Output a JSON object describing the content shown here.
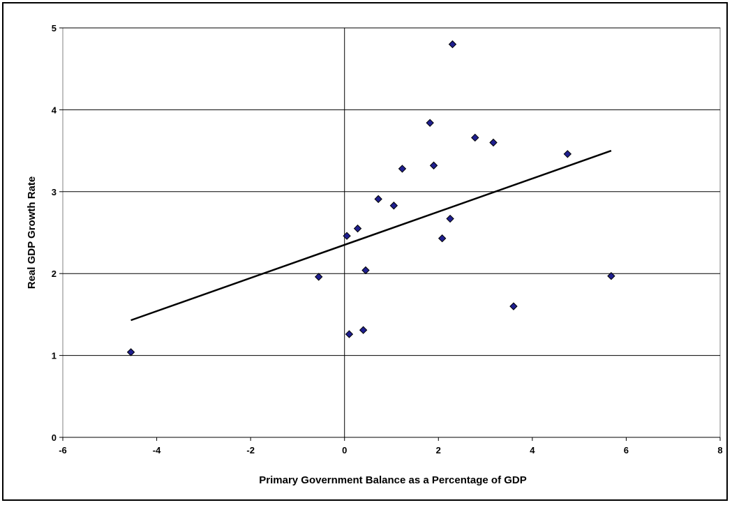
{
  "chart_data": {
    "type": "scatter",
    "title": "",
    "xlabel": "Primary Government Balance as a Percentage of GDP",
    "ylabel": "Real GDP Growth Rate",
    "xlim": [
      -6,
      8
    ],
    "ylim": [
      0,
      5
    ],
    "x_ticks": [
      "-6",
      "-4",
      "-2",
      "0",
      "2",
      "4",
      "6",
      "8"
    ],
    "y_ticks": [
      "0",
      "1",
      "2",
      "3",
      "4",
      "5"
    ],
    "grid": "horizontal",
    "marker": "diamond",
    "marker_color": "#1f1f8f",
    "points": [
      {
        "x": -4.55,
        "y": 1.04
      },
      {
        "x": -0.55,
        "y": 1.96
      },
      {
        "x": 0.05,
        "y": 2.46
      },
      {
        "x": 0.1,
        "y": 1.26
      },
      {
        "x": 0.28,
        "y": 2.55
      },
      {
        "x": 0.4,
        "y": 1.31
      },
      {
        "x": 0.45,
        "y": 2.04
      },
      {
        "x": 0.72,
        "y": 2.91
      },
      {
        "x": 1.05,
        "y": 2.83
      },
      {
        "x": 1.23,
        "y": 3.28
      },
      {
        "x": 1.82,
        "y": 3.84
      },
      {
        "x": 1.9,
        "y": 3.32
      },
      {
        "x": 2.08,
        "y": 2.43
      },
      {
        "x": 2.25,
        "y": 2.67
      },
      {
        "x": 2.3,
        "y": 4.8
      },
      {
        "x": 2.78,
        "y": 3.66
      },
      {
        "x": 3.17,
        "y": 3.6
      },
      {
        "x": 3.6,
        "y": 1.6
      },
      {
        "x": 4.75,
        "y": 3.46
      },
      {
        "x": 5.68,
        "y": 1.97
      }
    ],
    "trendline": {
      "x": [
        -4.55,
        5.68
      ],
      "y": [
        1.43,
        3.5
      ]
    }
  }
}
